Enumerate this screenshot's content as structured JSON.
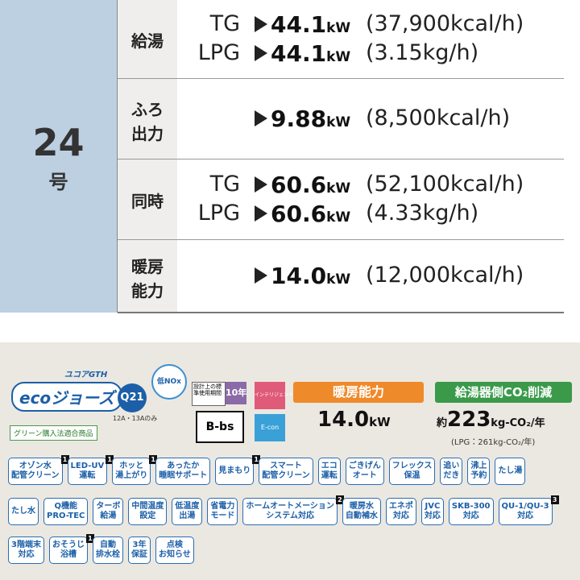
{
  "spec": {
    "size": {
      "number": "24",
      "unit": "号"
    },
    "rows": [
      {
        "label": [
          "給湯"
        ],
        "lines": [
          {
            "gas": "TG",
            "value": "44.1",
            "unit": "kW",
            "detail": "(37,900kcal/h)"
          },
          {
            "gas": "LPG",
            "value": "44.1",
            "unit": "kW",
            "detail": "(3.15kg/h)"
          }
        ]
      },
      {
        "label": [
          "ふろ",
          "出力"
        ],
        "lines": [
          {
            "value": "9.88",
            "unit": "kW",
            "detail": "(8,500kcal/h)"
          }
        ]
      },
      {
        "label": [
          "同時"
        ],
        "lines": [
          {
            "gas": "TG",
            "value": "60.6",
            "unit": "kW",
            "detail": "(52,100kcal/h)"
          },
          {
            "gas": "LPG",
            "value": "60.6",
            "unit": "kW",
            "detail": "(4.33kg/h)"
          }
        ]
      },
      {
        "label": [
          "暖房",
          "能力"
        ],
        "lines": [
          {
            "value": "14.0",
            "unit": "kW",
            "detail": "(12,000kcal/h)"
          }
        ]
      }
    ]
  },
  "logos": {
    "series": "ユコアGTH",
    "eco": "ecoジョーズ",
    "green": "グリーン購入法適合商品",
    "q21": "Q21",
    "q21_note": "12A・13Aのみ",
    "nox": "低NOx",
    "period": "設計上の標準使用期間",
    "period_years": "10年",
    "bbs": "B-bs",
    "intelligent": "インテリジェント",
    "econ": "E-con"
  },
  "heating": {
    "title": "暖房能力",
    "value": "14.0",
    "unit": "kW"
  },
  "co2": {
    "title": "給湯器側CO₂削減",
    "prefix": "約",
    "value": "223",
    "unit": "kg-CO₂/年",
    "lpg": "(LPG：261kg-CO₂/年)"
  },
  "features": [
    [
      {
        "lines": [
          "オゾン水",
          "配管クリーン"
        ],
        "mark": "1"
      },
      {
        "lines": [
          "LED-UV",
          "運転"
        ],
        "mark": "1"
      },
      {
        "lines": [
          "ホッと",
          "湯上がり"
        ],
        "mark": "1"
      },
      {
        "lines": [
          "あったか",
          "睡眠サポート"
        ]
      },
      {
        "lines": [
          "見まもり"
        ],
        "mark": "1"
      },
      {
        "lines": [
          "スマート",
          "配管クリーン"
        ]
      },
      {
        "lines": [
          "エコ",
          "運転"
        ]
      },
      {
        "lines": [
          "ごきげん",
          "オート"
        ]
      },
      {
        "lines": [
          "フレックス",
          "保温"
        ]
      },
      {
        "lines": [
          "追い",
          "だき"
        ]
      },
      {
        "lines": [
          "沸上",
          "予約"
        ]
      },
      {
        "lines": [
          "たし湯"
        ]
      }
    ],
    [
      {
        "lines": [
          "たし水"
        ]
      },
      {
        "lines": [
          "Q機能",
          "PRO-TEC"
        ]
      },
      {
        "lines": [
          "ターボ",
          "給湯"
        ]
      },
      {
        "lines": [
          "中間温度",
          "設定"
        ]
      },
      {
        "lines": [
          "低温度",
          "出湯"
        ]
      },
      {
        "lines": [
          "省電力",
          "モード"
        ]
      },
      {
        "lines": [
          "ホームオートメーション",
          "システム対応"
        ],
        "mark": "2"
      },
      {
        "lines": [
          "暖房水",
          "自動補水"
        ]
      },
      {
        "lines": [
          "エネポ",
          "対応"
        ]
      },
      {
        "lines": [
          "JVC",
          "対応"
        ]
      },
      {
        "lines": [
          "SKB-300",
          "対応"
        ]
      },
      {
        "lines": [
          "QU-1/QU-3",
          "対応"
        ],
        "mark": "3"
      }
    ],
    [
      {
        "lines": [
          "3階端末",
          "対応"
        ]
      },
      {
        "lines": [
          "おそうじ",
          "浴槽"
        ],
        "mark": "1"
      },
      {
        "lines": [
          "自動",
          "排水栓"
        ]
      },
      {
        "lines": [
          "3年",
          "保証"
        ]
      },
      {
        "lines": [
          "点検",
          "お知らせ"
        ]
      }
    ]
  ]
}
